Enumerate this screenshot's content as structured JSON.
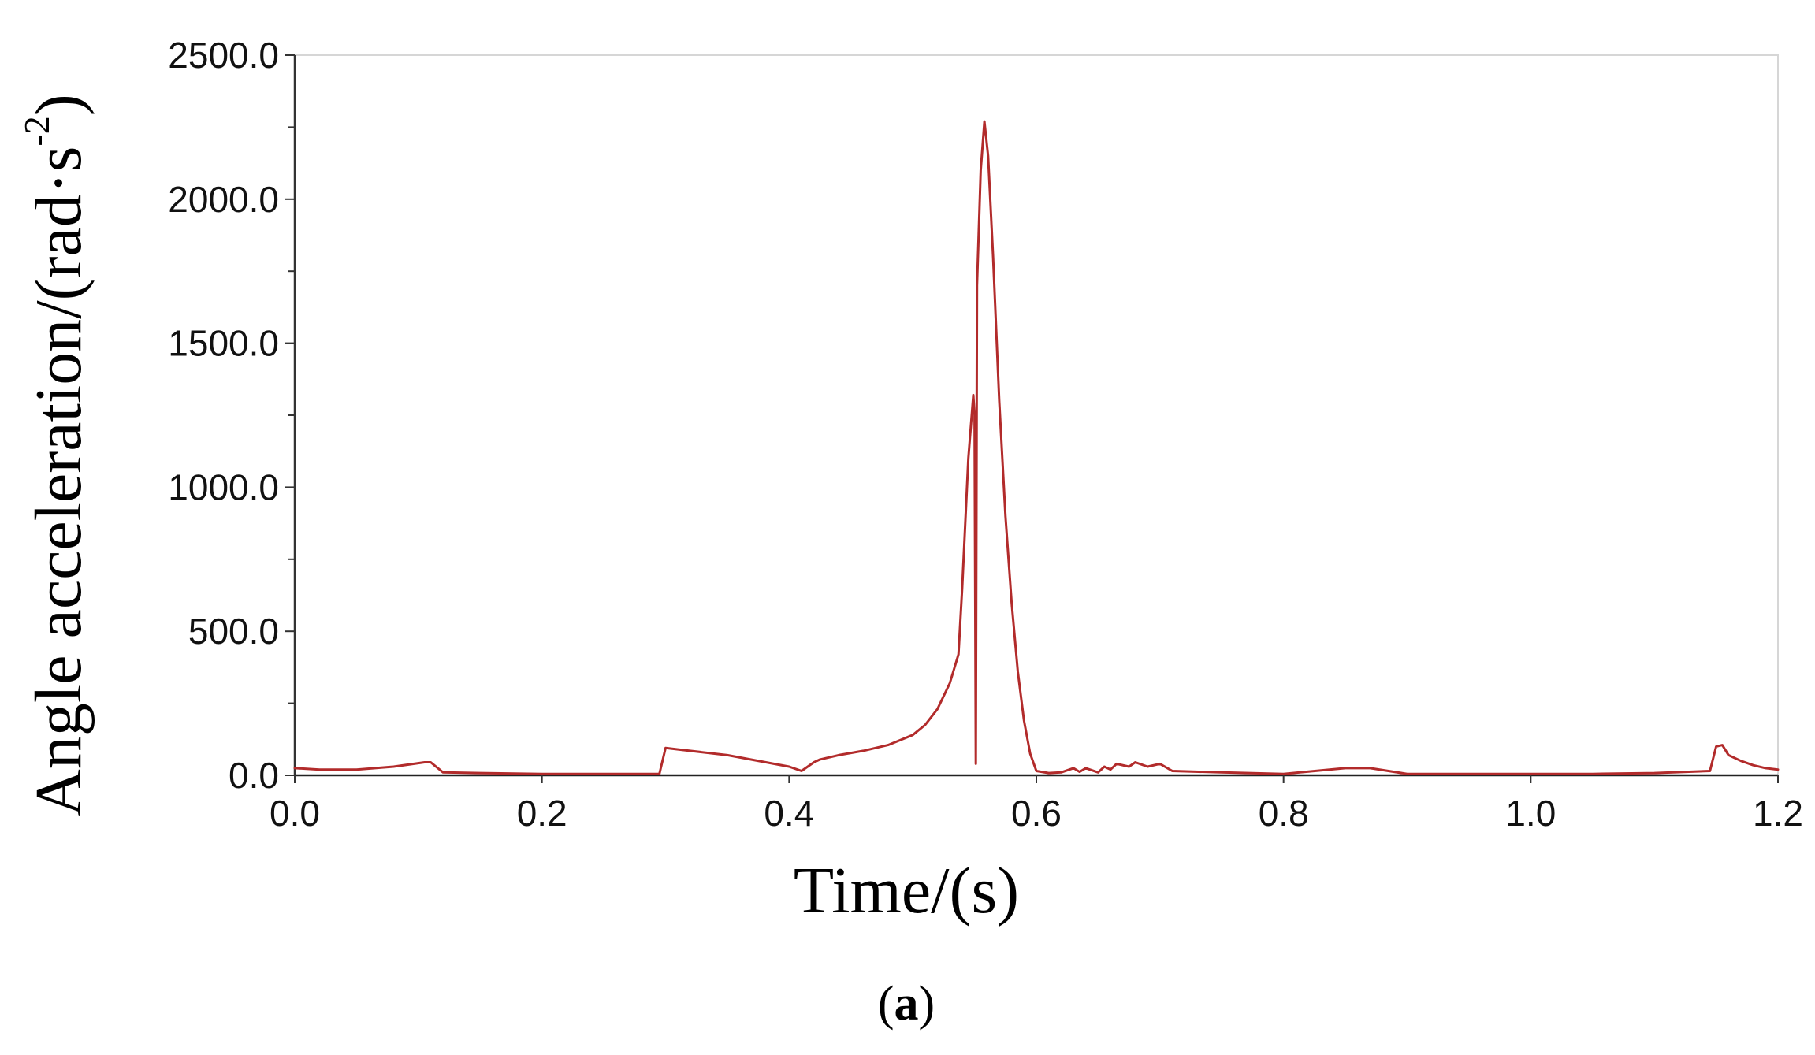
{
  "chart_data": {
    "type": "line",
    "xlabel": "Time/(s)",
    "ylabel": "Angle acceleration/(rad·s",
    "ylabel_superscript": "-2",
    "ylabel_close": ")",
    "panel_label_open": "(",
    "panel_label_letter": "a",
    "panel_label_close": ")",
    "xlim": [
      0.0,
      1.2
    ],
    "ylim": [
      0.0,
      2500.0
    ],
    "x_ticks": [
      0.0,
      0.2,
      0.4,
      0.6,
      0.8,
      1.0,
      1.2
    ],
    "x_tick_labels": [
      "0.0",
      "0.2",
      "0.4",
      "0.6",
      "0.8",
      "1.0",
      "1.2"
    ],
    "y_ticks": [
      0.0,
      500.0,
      1000.0,
      1500.0,
      2000.0,
      2500.0
    ],
    "y_tick_labels": [
      "0.0",
      "500.0",
      "1000.0",
      "1500.0",
      "2000.0",
      "2500.0"
    ],
    "y_minor_step": 250,
    "grid": false,
    "line_color": "#b22b2b",
    "series": [
      {
        "x": [
          0.0,
          0.02,
          0.05,
          0.08,
          0.105,
          0.11,
          0.12,
          0.15,
          0.2,
          0.25,
          0.295,
          0.3,
          0.31,
          0.35,
          0.4,
          0.41,
          0.42,
          0.425,
          0.44,
          0.46,
          0.48,
          0.5,
          0.51,
          0.52,
          0.53,
          0.537,
          0.54,
          0.545,
          0.549,
          0.55,
          0.551,
          0.552,
          0.555,
          0.558,
          0.561,
          0.565,
          0.57,
          0.575,
          0.58,
          0.585,
          0.59,
          0.595,
          0.6,
          0.61,
          0.62,
          0.63,
          0.635,
          0.64,
          0.65,
          0.655,
          0.66,
          0.665,
          0.675,
          0.68,
          0.69,
          0.7,
          0.71,
          0.75,
          0.8,
          0.85,
          0.87,
          0.9,
          0.95,
          1.0,
          1.05,
          1.1,
          1.145,
          1.15,
          1.155,
          1.16,
          1.17,
          1.18,
          1.19,
          1.2
        ],
        "y": [
          25,
          20,
          20,
          30,
          45,
          45,
          10,
          8,
          5,
          5,
          5,
          95,
          90,
          70,
          30,
          15,
          45,
          55,
          70,
          85,
          105,
          140,
          175,
          230,
          320,
          420,
          650,
          1100,
          1320,
          1250,
          40,
          1700,
          2100,
          2270,
          2150,
          1800,
          1300,
          900,
          600,
          360,
          190,
          75,
          15,
          8,
          10,
          25,
          12,
          25,
          10,
          30,
          20,
          40,
          30,
          45,
          30,
          40,
          15,
          10,
          5,
          25,
          25,
          5,
          5,
          5,
          5,
          8,
          15,
          100,
          105,
          70,
          50,
          35,
          25,
          20
        ]
      }
    ]
  }
}
